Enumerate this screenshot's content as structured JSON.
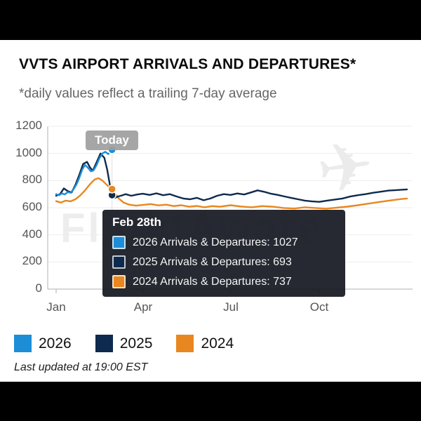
{
  "page": {
    "title": "VVTS AIRPORT ARRIVALS AND DEPARTURES*",
    "subtitle": "*daily values reflect a trailing 7-day average",
    "last_updated": "Last updated at 19:00 EST",
    "watermark": "FlightAware"
  },
  "icons": {
    "airplane_watermark": "✈"
  },
  "today_badge": "Today",
  "tooltip": {
    "header": "Feb 28th",
    "rows": [
      {
        "color": "#1d8dd8",
        "text": "2026 Arrivals & Departures: 1027"
      },
      {
        "color": "#0e2a4e",
        "text": "2025 Arrivals & Departures: 693"
      },
      {
        "color": "#e8871f",
        "text": "2024 Arrivals & Departures: 737"
      }
    ]
  },
  "legend": [
    {
      "label": "2026",
      "color": "#1d8dd8"
    },
    {
      "label": "2025",
      "color": "#0e2a4e"
    },
    {
      "label": "2024",
      "color": "#e8871f"
    }
  ],
  "chart_data": {
    "type": "line",
    "title": "VVTS AIRPORT ARRIVALS AND DEPARTURES*",
    "subtitle": "*daily values reflect a trailing 7-day average",
    "xlabel": "",
    "ylabel": "",
    "ylim": [
      0,
      1200
    ],
    "y_ticks": [
      "1200",
      "1000",
      "800",
      "600",
      "400",
      "200",
      "0"
    ],
    "x_ticks": [
      "Jan",
      "Apr",
      "Jul",
      "Oct"
    ],
    "x_tick_days": [
      0,
      90,
      181,
      273
    ],
    "days_total": 364,
    "grid": "light-horizontal",
    "legend_position": "bottom-left",
    "marker_day": 58,
    "marker_label": "Feb 28th",
    "marker_values": [
      1027,
      693,
      737
    ],
    "series": [
      {
        "name": "2026",
        "color": "#1d8dd8",
        "x": [
          0,
          3,
          6,
          9,
          12,
          15,
          18,
          21,
          24,
          27,
          30,
          33,
          36,
          39,
          42,
          45,
          48,
          51,
          54,
          56,
          58
        ],
        "values": [
          700,
          692,
          705,
          698,
          715,
          710,
          735,
          770,
          820,
          880,
          915,
          895,
          868,
          878,
          915,
          965,
          1000,
          1012,
          995,
          1012,
          1027
        ]
      },
      {
        "name": "2025",
        "color": "#0e2a4e",
        "x": [
          0,
          4,
          8,
          12,
          16,
          20,
          24,
          28,
          32,
          35,
          38,
          42,
          46,
          50,
          53,
          56,
          58,
          61,
          64,
          68,
          72,
          78,
          84,
          90,
          97,
          104,
          111,
          118,
          125,
          132,
          139,
          146,
          153,
          160,
          167,
          174,
          181,
          188,
          195,
          202,
          209,
          216,
          223,
          230,
          237,
          244,
          251,
          258,
          265,
          273,
          281,
          289,
          297,
          305,
          313,
          321,
          329,
          337,
          345,
          353,
          364
        ],
        "values": [
          688,
          700,
          742,
          722,
          712,
          768,
          842,
          922,
          938,
          898,
          872,
          935,
          1000,
          968,
          880,
          760,
          693,
          672,
          682,
          690,
          700,
          688,
          697,
          703,
          694,
          706,
          692,
          700,
          683,
          668,
          662,
          673,
          655,
          668,
          688,
          700,
          694,
          705,
          697,
          712,
          728,
          717,
          703,
          694,
          683,
          672,
          662,
          652,
          647,
          643,
          652,
          660,
          668,
          682,
          692,
          700,
          710,
          718,
          726,
          730,
          735
        ]
      },
      {
        "name": "2024",
        "color": "#e8871f",
        "x": [
          0,
          5,
          10,
          15,
          20,
          25,
          30,
          35,
          40,
          44,
          48,
          52,
          55,
          58,
          61,
          65,
          70,
          76,
          83,
          90,
          98,
          106,
          114,
          122,
          130,
          138,
          146,
          154,
          162,
          170,
          181,
          192,
          203,
          214,
          225,
          236,
          247,
          258,
          269,
          280,
          291,
          302,
          313,
          324,
          335,
          346,
          357,
          364
        ],
        "values": [
          648,
          638,
          652,
          647,
          662,
          690,
          728,
          772,
          808,
          818,
          800,
          772,
          752,
          737,
          706,
          668,
          638,
          622,
          615,
          620,
          627,
          617,
          622,
          612,
          618,
          607,
          613,
          603,
          612,
          607,
          618,
          609,
          603,
          612,
          607,
          598,
          594,
          603,
          598,
          593,
          600,
          608,
          618,
          630,
          642,
          653,
          663,
          668
        ]
      }
    ]
  }
}
